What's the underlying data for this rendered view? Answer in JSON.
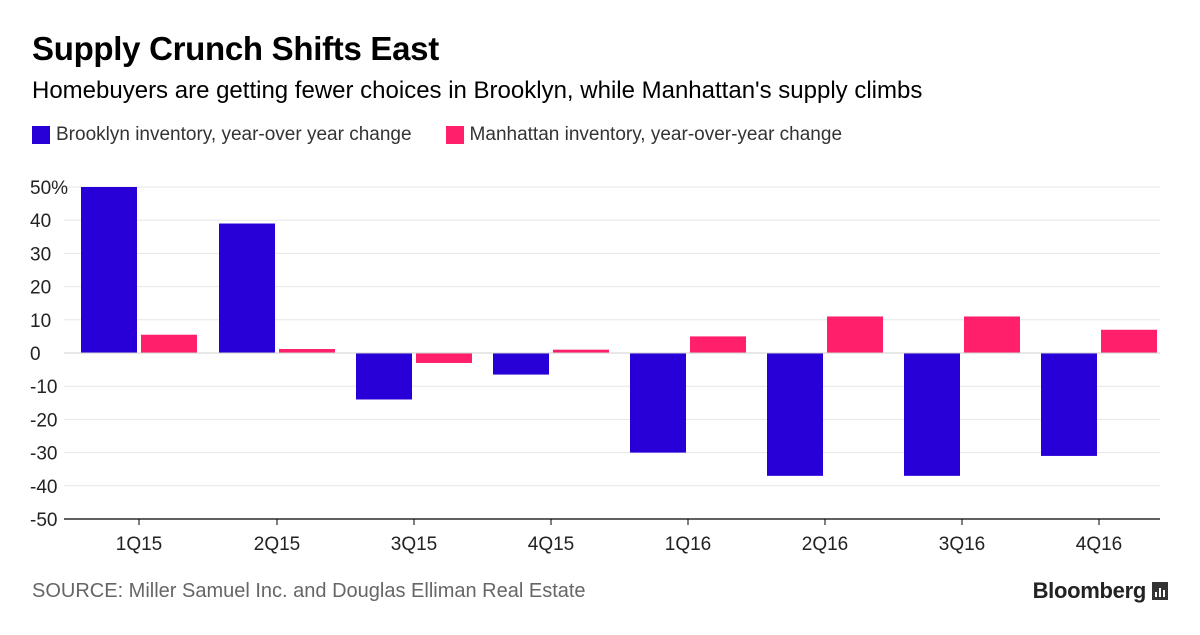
{
  "title": "Supply Crunch Shifts East",
  "subtitle": "Homebuyers are getting fewer choices in Brooklyn, while Manhattan's supply climbs",
  "source": "SOURCE: Miller Samuel Inc. and Douglas Elliman Real Estate",
  "brand": "Bloomberg",
  "brand_icon": "bloomberg-chart-icon",
  "colors": {
    "brooklyn": "#2800d7",
    "manhattan": "#ff1f6a",
    "grid": "#e6e6e6",
    "axis": "#000000"
  },
  "chart_data": {
    "type": "bar",
    "categories": [
      "1Q15",
      "2Q15",
      "3Q15",
      "4Q15",
      "1Q16",
      "2Q16",
      "3Q16",
      "4Q16"
    ],
    "series": [
      {
        "name": "Brooklyn inventory, year-over year change",
        "values": [
          50,
          39,
          -14,
          -6.5,
          -30,
          -37,
          -37,
          -31
        ]
      },
      {
        "name": "Manhattan inventory, year-over-year change",
        "values": [
          5.5,
          1.2,
          -3,
          1,
          5,
          11,
          11,
          7
        ]
      }
    ],
    "yticks": [
      50,
      40,
      30,
      20,
      10,
      0,
      -10,
      -20,
      -30,
      -40,
      -50
    ],
    "ytick_labels": [
      "50%",
      "40",
      "30",
      "20",
      "10",
      "0",
      "-10",
      "-20",
      "-30",
      "-40",
      "-50"
    ],
    "ylim": [
      -50,
      50
    ],
    "grid": true,
    "legend": "top-left",
    "xlabel": "",
    "ylabel": ""
  }
}
